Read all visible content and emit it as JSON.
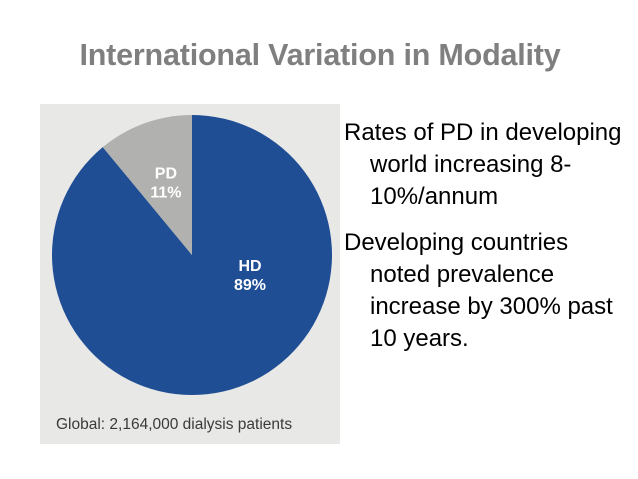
{
  "slide": {
    "title": "International Variation in Modality"
  },
  "bullets": [
    "Rates of PD in developing world increasing 8-10%/annum",
    "Developing countries noted prevalence increase by 300% past 10 years."
  ],
  "chart_data": {
    "type": "pie",
    "caption": "Global: 2,164,000 dialysis patients",
    "series": [
      {
        "values": [
          89,
          11
        ]
      }
    ],
    "slices": [
      {
        "label": "HD",
        "value_label": "89%",
        "value": 89,
        "color": "#1f4e94"
      },
      {
        "label": "PD",
        "value_label": "11%",
        "value": 11,
        "color": "#b1b1b0"
      }
    ],
    "label_color": "#ffffff"
  }
}
